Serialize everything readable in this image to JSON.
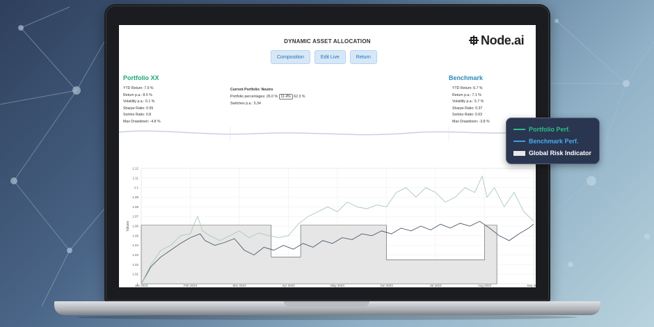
{
  "app": {
    "title": "DYNAMIC ASSET ALLOCATION",
    "logo_text": "Node.ai"
  },
  "tabs": [
    {
      "label": "Composition"
    },
    {
      "label": "Edit Live"
    },
    {
      "label": "Return"
    }
  ],
  "portfolio": {
    "title": "Portfolio XX",
    "stats": [
      "YTD Return: 7.9 %",
      "Return p.a.: 8.5 %",
      "Volatility p.a.: 6.1 %",
      "Sharpe Ratio: 0.55",
      "Sortino Ratio: 0.8",
      "Max Drawdown: -4.8 %"
    ]
  },
  "current_portfolio": {
    "title": "Current Portfolio: Neutro",
    "percentages_label": "Portfolio percentages: 26.0 %",
    "highlight": "11.4%",
    "percentages_rest": "62.3 %",
    "switches": "Switches p.a.: 5.34"
  },
  "benchmark": {
    "title": "Benchmark",
    "stats": [
      "YTD Return: 6.7 %",
      "Return p.a.: 7.1 %",
      "Volatility p.a.: 5.7 %",
      "Sharpe Ratio: 0.37",
      "Sortino Ratio: 0.63",
      "Max Drawdown: -3.8 %"
    ]
  },
  "legend": {
    "portfolio": "Portfolio Perf.",
    "benchmark": "Benchmark Perf.",
    "risk": "Global Risk Indicator"
  },
  "colors": {
    "portfolio": "#2bbf89",
    "benchmark": "#3a9ee0",
    "accent_tab": "#2a6fb0",
    "legend_bg": "#2a3550"
  },
  "chart_data": {
    "type": "line",
    "ylabel": "Values",
    "ylim": [
      1.0,
      1.12
    ],
    "y_ticks": [
      "1",
      "1.01",
      "1.02",
      "1.03",
      "1.04",
      "1.05",
      "1.06",
      "1.07",
      "1.08",
      "1.09",
      "1.1",
      "1.11",
      "1.12"
    ],
    "x_ticks": [
      "Jan 2023",
      "Feb 2023",
      "Mar 2023",
      "Apr 2023",
      "May 2023",
      "Jun 2023",
      "Jul 2023",
      "Aug 2023",
      "Sep 2023"
    ],
    "x_range": [
      0,
      8
    ],
    "series": [
      {
        "name": "Portfolio Perf.",
        "points": [
          [
            0,
            1.0
          ],
          [
            0.2,
            1.02
          ],
          [
            0.4,
            1.035
          ],
          [
            0.6,
            1.04
          ],
          [
            0.8,
            1.05
          ],
          [
            1.0,
            1.052
          ],
          [
            1.1,
            1.065
          ],
          [
            1.15,
            1.07
          ],
          [
            1.25,
            1.055
          ],
          [
            1.4,
            1.05
          ],
          [
            1.6,
            1.045
          ],
          [
            1.8,
            1.05
          ],
          [
            2.0,
            1.055
          ],
          [
            2.2,
            1.048
          ],
          [
            2.4,
            1.053
          ],
          [
            2.6,
            1.05
          ],
          [
            2.8,
            1.048
          ],
          [
            3.0,
            1.05
          ],
          [
            3.2,
            1.062
          ],
          [
            3.4,
            1.07
          ],
          [
            3.6,
            1.075
          ],
          [
            3.8,
            1.08
          ],
          [
            4.0,
            1.075
          ],
          [
            4.2,
            1.085
          ],
          [
            4.4,
            1.08
          ],
          [
            4.6,
            1.078
          ],
          [
            4.8,
            1.082
          ],
          [
            5.0,
            1.08
          ],
          [
            5.2,
            1.095
          ],
          [
            5.4,
            1.1
          ],
          [
            5.6,
            1.09
          ],
          [
            5.8,
            1.1
          ],
          [
            6.0,
            1.095
          ],
          [
            6.2,
            1.085
          ],
          [
            6.4,
            1.09
          ],
          [
            6.6,
            1.1
          ],
          [
            6.8,
            1.095
          ],
          [
            6.95,
            1.112
          ],
          [
            7.05,
            1.09
          ],
          [
            7.2,
            1.1
          ],
          [
            7.4,
            1.08
          ],
          [
            7.6,
            1.095
          ],
          [
            7.8,
            1.075
          ],
          [
            8.0,
            1.065
          ]
        ]
      },
      {
        "name": "Benchmark Perf.",
        "points": [
          [
            0,
            1.0
          ],
          [
            0.2,
            1.018
          ],
          [
            0.4,
            1.028
          ],
          [
            0.6,
            1.035
          ],
          [
            0.8,
            1.042
          ],
          [
            1.0,
            1.048
          ],
          [
            1.2,
            1.052
          ],
          [
            1.3,
            1.045
          ],
          [
            1.5,
            1.04
          ],
          [
            1.7,
            1.043
          ],
          [
            1.9,
            1.047
          ],
          [
            2.1,
            1.035
          ],
          [
            2.3,
            1.03
          ],
          [
            2.5,
            1.038
          ],
          [
            2.7,
            1.035
          ],
          [
            2.9,
            1.04
          ],
          [
            3.1,
            1.036
          ],
          [
            3.3,
            1.042
          ],
          [
            3.5,
            1.038
          ],
          [
            3.7,
            1.045
          ],
          [
            3.9,
            1.042
          ],
          [
            4.1,
            1.048
          ],
          [
            4.3,
            1.046
          ],
          [
            4.5,
            1.052
          ],
          [
            4.7,
            1.05
          ],
          [
            4.9,
            1.055
          ],
          [
            5.1,
            1.052
          ],
          [
            5.3,
            1.058
          ],
          [
            5.5,
            1.055
          ],
          [
            5.7,
            1.06
          ],
          [
            5.9,
            1.056
          ],
          [
            6.1,
            1.062
          ],
          [
            6.3,
            1.058
          ],
          [
            6.5,
            1.063
          ],
          [
            6.7,
            1.06
          ],
          [
            6.9,
            1.065
          ],
          [
            7.1,
            1.058
          ],
          [
            7.3,
            1.05
          ],
          [
            7.5,
            1.045
          ],
          [
            7.7,
            1.052
          ],
          [
            7.9,
            1.058
          ],
          [
            8.0,
            1.062
          ]
        ]
      },
      {
        "name": "Global Risk Indicator",
        "points": [
          [
            0,
            1.061
          ],
          [
            2.65,
            1.061
          ],
          [
            2.65,
            1.028
          ],
          [
            3.25,
            1.028
          ],
          [
            3.25,
            1.061
          ],
          [
            5.0,
            1.061
          ],
          [
            5.0,
            1.025
          ],
          [
            7.0,
            1.025
          ],
          [
            7.0,
            1.061
          ],
          [
            7.25,
            1.061
          ],
          [
            7.25,
            1.0
          ]
        ]
      }
    ]
  }
}
